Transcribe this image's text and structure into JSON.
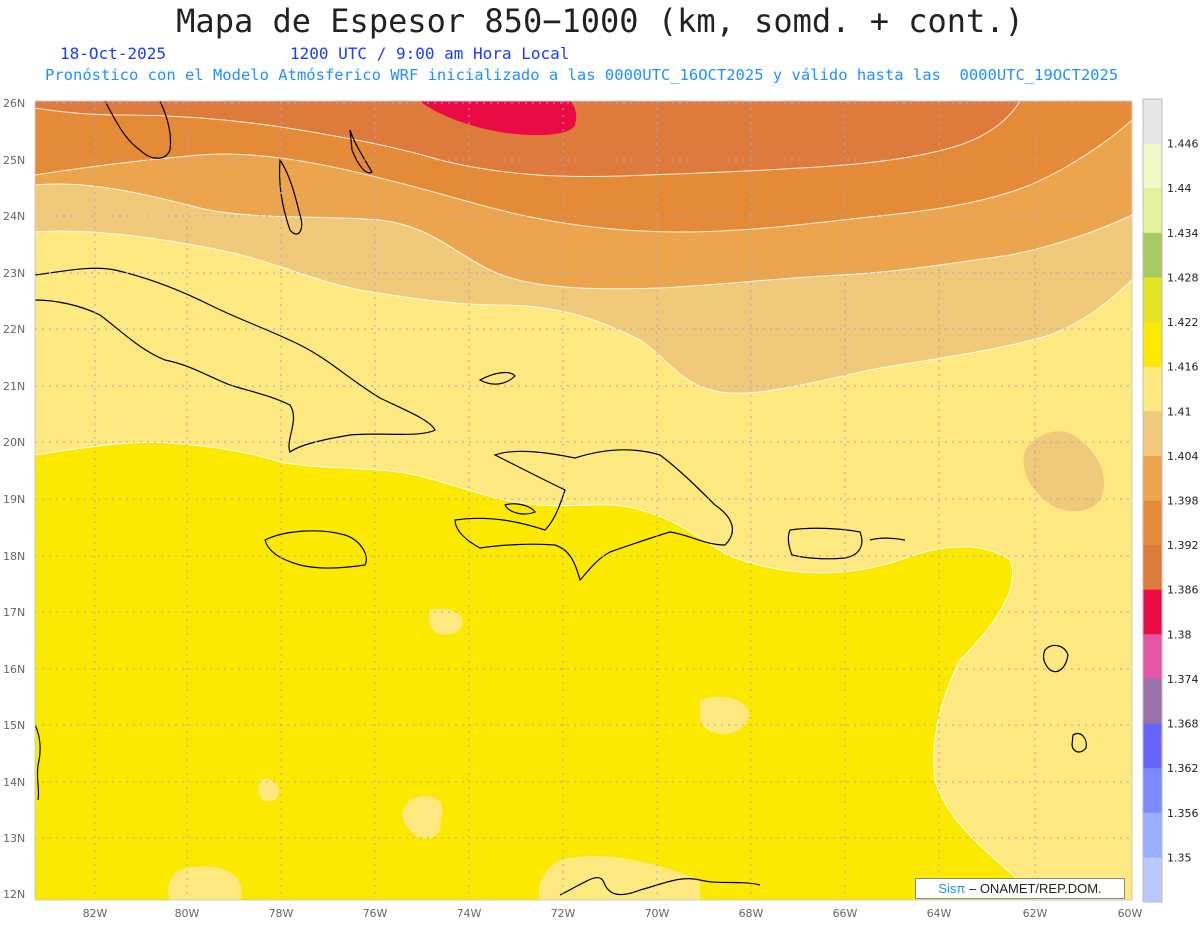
{
  "header": {
    "title": "Mapa de Espesor 850−1000 (km, somd. + cont.)",
    "date": "18-Oct-2025",
    "time": "1200 UTC / 9:00 am Hora Local",
    "model_info": "Pronóstico con el Modelo Atmósferico WRF inicializado a las 0000UTC_16OCT2025 y válido hasta las  0000UTC_19OCT2025"
  },
  "map": {
    "region": "Caribe",
    "lat_ticks": [
      "26N",
      "25N",
      "24N",
      "23N",
      "22N",
      "21N",
      "20N",
      "19N",
      "18N",
      "17N",
      "16N",
      "15N",
      "14N",
      "13N",
      "12N"
    ],
    "lon_ticks": [
      "82W",
      "80W",
      "78W",
      "76W",
      "74W",
      "72W",
      "70W",
      "68W",
      "66W",
      "64W",
      "62W",
      "60W"
    ]
  },
  "colorbar": {
    "levels": [
      "1.446",
      "1.44",
      "1.434",
      "1.428",
      "1.422",
      "1.416",
      "1.41",
      "1.404",
      "1.398",
      "1.392",
      "1.386",
      "1.38",
      "1.374",
      "1.368",
      "1.362",
      "1.356",
      "1.35"
    ],
    "colors": [
      "#e6e6e6",
      "#eef7c6",
      "#e1f29b",
      "#a8c95f",
      "#e3e424",
      "#fce900",
      "#fde97f",
      "#f0c97a",
      "#eca54d",
      "#e58a37",
      "#de7a3b",
      "#ea0a44",
      "#e455a6",
      "#9a70aa",
      "#6666ff",
      "#7b8bff",
      "#98aeff",
      "#b9c9ff"
    ]
  },
  "credit": {
    "brand": "Sisπ",
    "text": " –  ONAMET/REP.DOM."
  }
}
